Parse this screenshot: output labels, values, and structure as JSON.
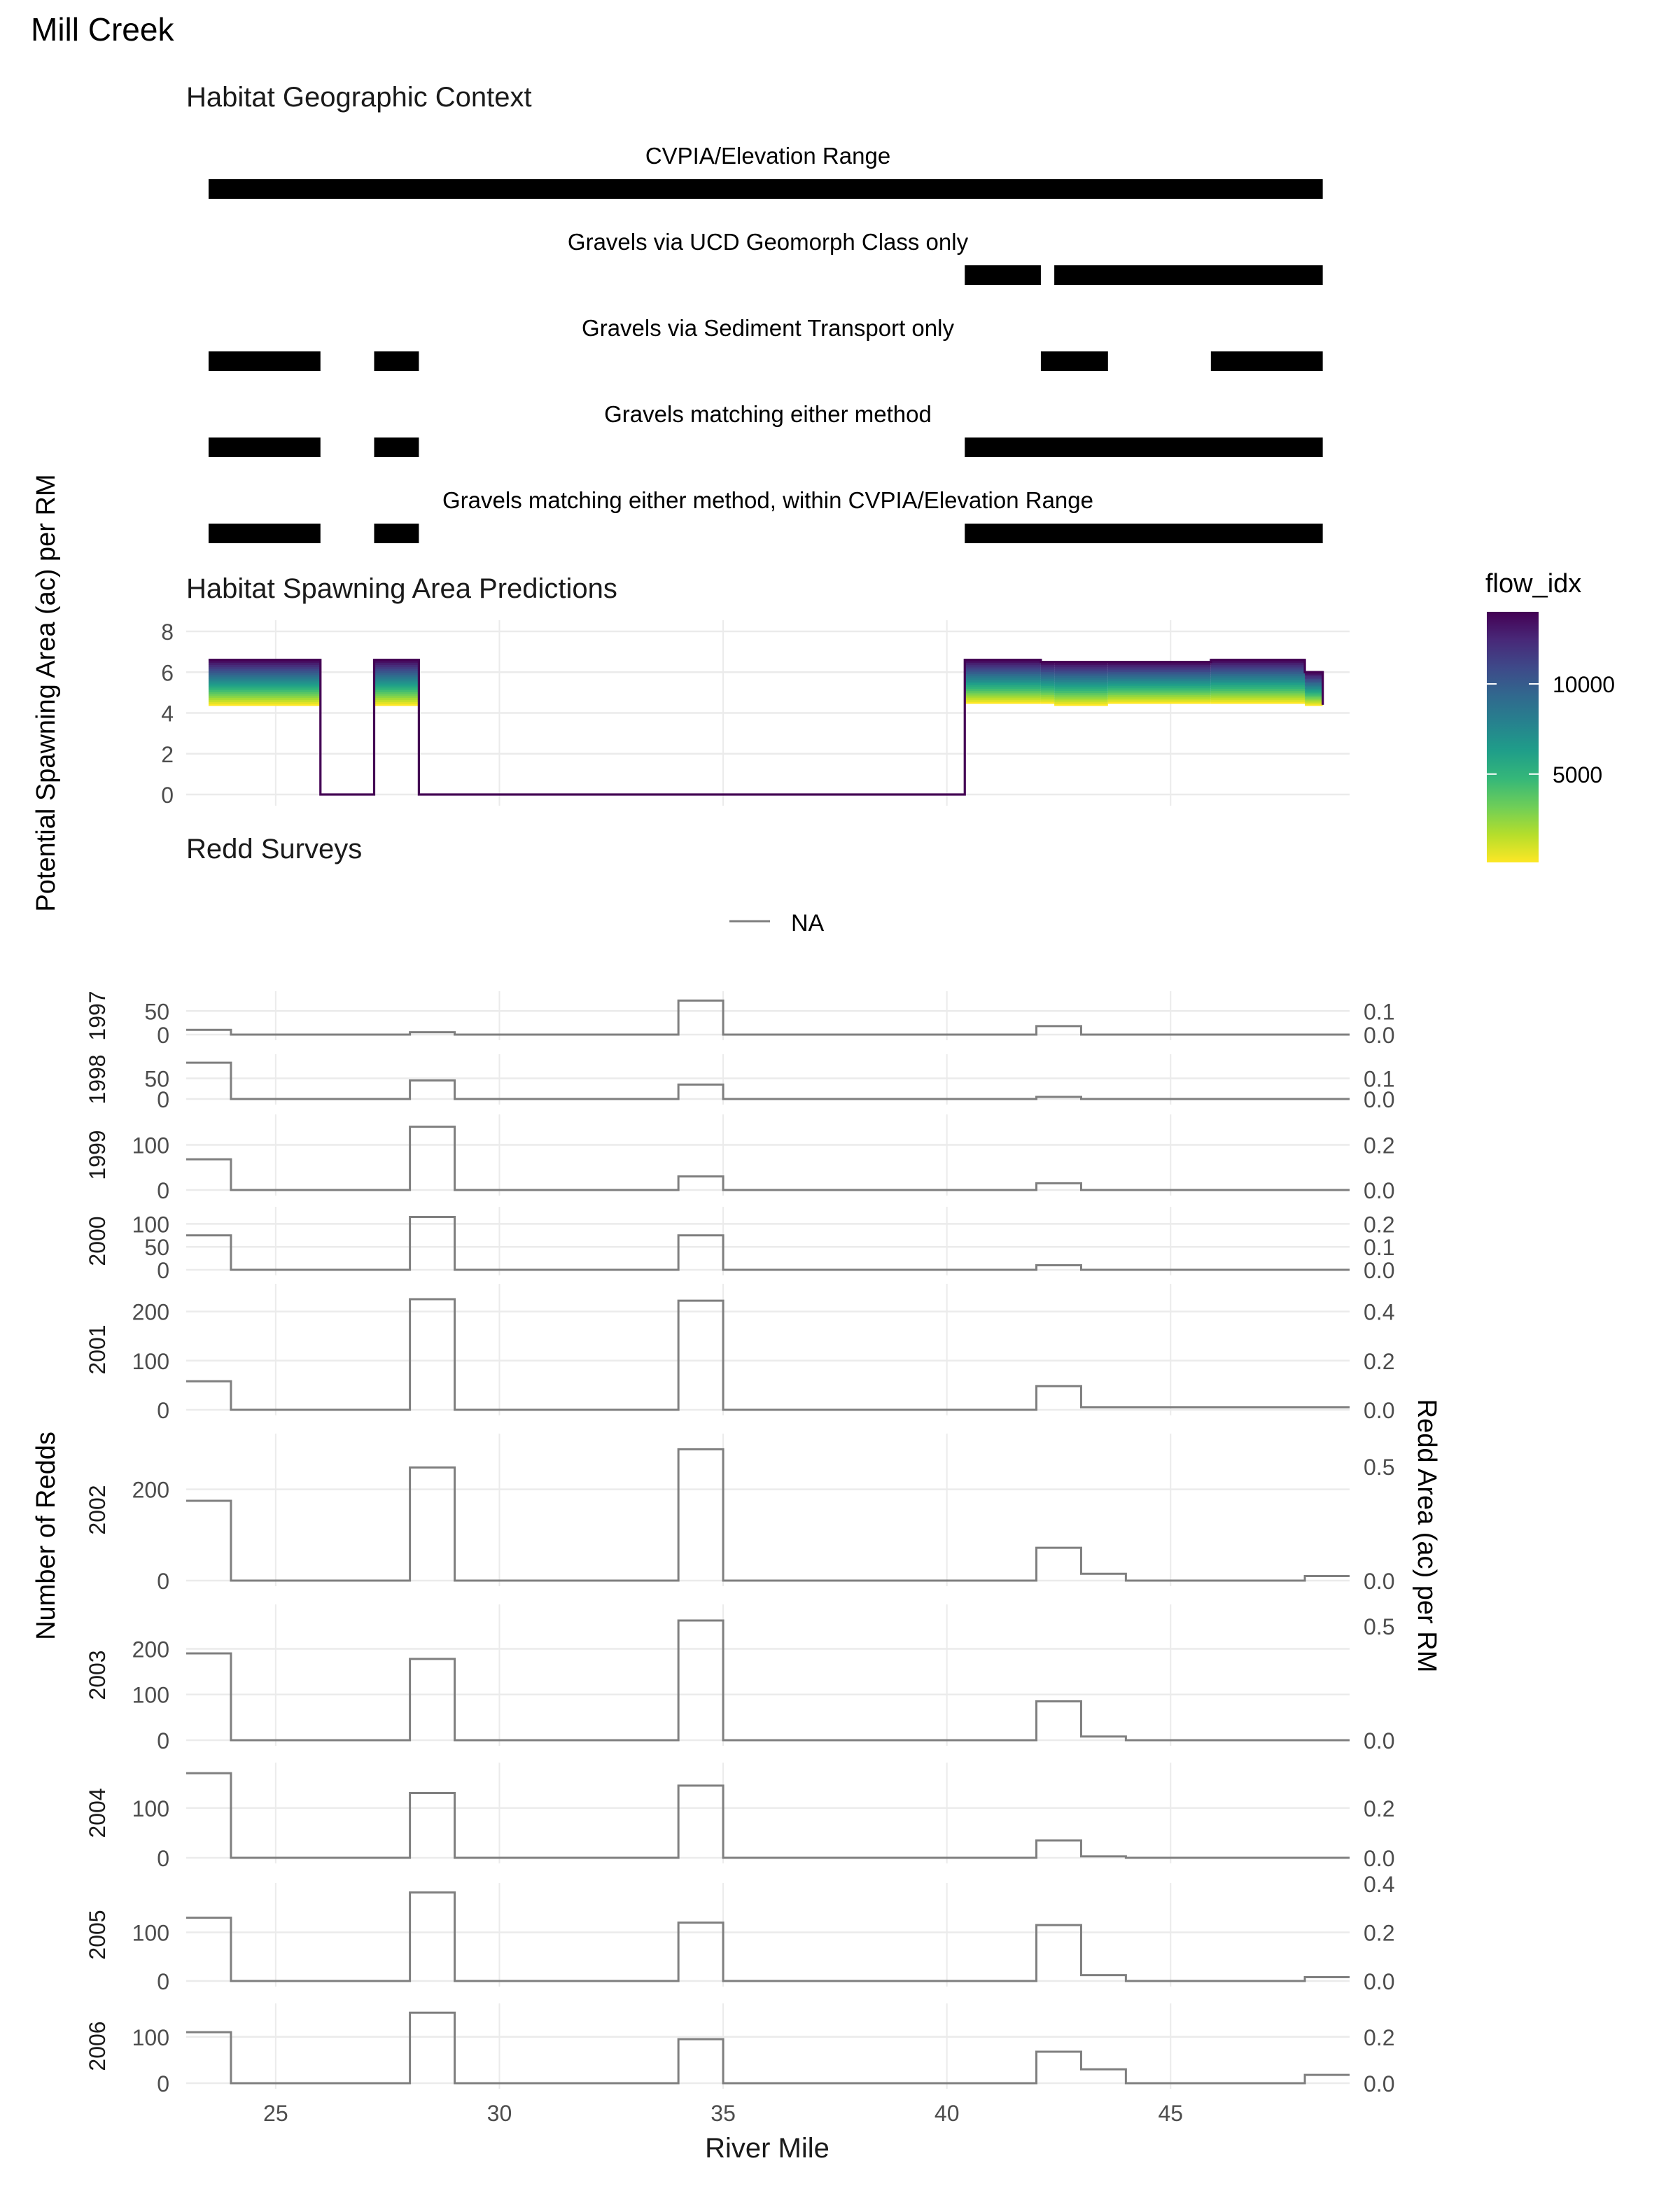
{
  "page_title": "Mill Creek",
  "chart_data": [
    {
      "type": "bar",
      "title": "Habitat Geographic Context",
      "x_range": [
        23,
        49
      ],
      "tracks": [
        {
          "label": "CVPIA/Elevation Range",
          "segments": [
            [
              23.5,
              48.4
            ]
          ]
        },
        {
          "label": "Gravels via UCD Geomorph Class only",
          "segments": [
            [
              40.4,
              42.1
            ],
            [
              42.4,
              48.4
            ]
          ]
        },
        {
          "label": "Gravels via Sediment Transport only",
          "segments": [
            [
              23.5,
              26.0
            ],
            [
              27.2,
              28.2
            ],
            [
              42.1,
              43.6
            ],
            [
              45.9,
              48.4
            ]
          ]
        },
        {
          "label": "Gravels matching either method",
          "segments": [
            [
              23.5,
              26.0
            ],
            [
              27.2,
              28.2
            ],
            [
              40.4,
              48.4
            ]
          ]
        },
        {
          "label": "Gravels matching either method, within CVPIA/Elevation Range",
          "segments": [
            [
              23.5,
              26.0
            ],
            [
              27.2,
              28.2
            ],
            [
              40.4,
              48.4
            ]
          ]
        }
      ]
    },
    {
      "type": "line",
      "title": "Habitat Spawning Area Predictions",
      "ylabel": "Potential Spawning Area (ac) per RM",
      "ylim": [
        0,
        8
      ],
      "y_ticks": [
        0,
        2,
        4,
        6,
        8
      ],
      "x_range": [
        23,
        49
      ],
      "legend": {
        "title": "flow_idx",
        "ticks": [
          5000,
          10000
        ],
        "range": [
          100,
          14000
        ],
        "colors": [
          "#fde725",
          "#b5de2b",
          "#6ece58",
          "#35b779",
          "#1f9e89",
          "#26828e",
          "#31688e",
          "#3e4989",
          "#482878",
          "#440154"
        ]
      },
      "segments": [
        {
          "x0": 23.5,
          "x1": 26.0,
          "top": 6.6,
          "bottom": 4.4
        },
        {
          "x0": 27.2,
          "x1": 28.2,
          "top": 6.6,
          "bottom": 4.4
        },
        {
          "x0": 40.4,
          "x1": 42.1,
          "top": 6.6,
          "bottom": 4.5
        },
        {
          "x0": 42.1,
          "x1": 42.4,
          "top": 6.5,
          "bottom": 4.5
        },
        {
          "x0": 42.4,
          "x1": 43.6,
          "top": 6.5,
          "bottom": 4.4
        },
        {
          "x0": 43.6,
          "x1": 45.9,
          "top": 6.5,
          "bottom": 4.5
        },
        {
          "x0": 45.9,
          "x1": 48.0,
          "top": 6.6,
          "bottom": 4.5
        },
        {
          "x0": 48.0,
          "x1": 48.4,
          "top": 6.0,
          "bottom": 4.4
        }
      ]
    },
    {
      "type": "line",
      "title": "Redd Surveys",
      "legend_label": "NA",
      "xlabel": "River Mile",
      "ylabel": "Number of Redds",
      "ylabel_right": "Redd Area (ac) per RM",
      "x_range": [
        23,
        49
      ],
      "x_ticks": [
        25,
        30,
        35,
        40,
        45
      ],
      "bins": [
        23,
        24,
        28,
        29,
        34,
        35,
        42,
        43,
        44,
        48,
        49
      ],
      "panels": [
        {
          "year": "1997",
          "counts": [
            10,
            0,
            5,
            0,
            72,
            0,
            18,
            0,
            0,
            0
          ],
          "ymax": 80,
          "y_ticks": [
            0,
            50
          ],
          "y2_ticks": [
            "0.0",
            "0.1"
          ],
          "y2_per": 500
        },
        {
          "year": "1998",
          "counts": [
            88,
            0,
            45,
            0,
            35,
            0,
            5,
            0,
            0,
            0
          ],
          "ymax": 95,
          "y_ticks": [
            0,
            50
          ],
          "y2_ticks": [
            "0.0",
            "0.1"
          ],
          "y2_per": 500
        },
        {
          "year": "1999",
          "counts": [
            68,
            0,
            140,
            0,
            30,
            0,
            15,
            0,
            0,
            0
          ],
          "ymax": 155,
          "y_ticks": [
            0,
            100
          ],
          "y2_ticks": [
            "0.0",
            "0.2"
          ],
          "y2_per": 500
        },
        {
          "year": "2000",
          "counts": [
            75,
            0,
            115,
            0,
            75,
            0,
            10,
            0,
            0,
            0
          ],
          "ymax": 125,
          "y_ticks": [
            0,
            50,
            100
          ],
          "y2_ticks": [
            "0.0",
            "0.1",
            "0.2"
          ],
          "y2_per": 500
        },
        {
          "year": "2001",
          "counts": [
            58,
            0,
            225,
            0,
            222,
            0,
            48,
            5,
            5,
            5
          ],
          "ymax": 245,
          "y_ticks": [
            0,
            100,
            200
          ],
          "y2_ticks": [
            "0.0",
            "0.2",
            "0.4"
          ],
          "y2_per": 500
        },
        {
          "year": "2002",
          "counts": [
            175,
            0,
            248,
            0,
            288,
            0,
            72,
            15,
            0,
            10
          ],
          "ymax": 310,
          "y_ticks": [
            0,
            200
          ],
          "y2_ticks": [
            "0.0",
            "0.5"
          ],
          "y2_per": 500
        },
        {
          "year": "2003",
          "counts": [
            190,
            0,
            178,
            0,
            262,
            0,
            85,
            8,
            0,
            0
          ],
          "ymax": 285,
          "y_ticks": [
            0,
            100,
            200
          ],
          "y2_ticks": [
            "0.0",
            "0.5"
          ],
          "y2_per": 500
        },
        {
          "year": "2004",
          "counts": [
            170,
            0,
            130,
            0,
            145,
            0,
            35,
            3,
            0,
            0
          ],
          "ymax": 180,
          "y_ticks": [
            0,
            100
          ],
          "y2_ticks": [
            "0.0",
            "0.2"
          ],
          "y2_per": 500
        },
        {
          "year": "2005",
          "counts": [
            130,
            0,
            182,
            0,
            120,
            0,
            115,
            12,
            0,
            8
          ],
          "ymax": 190,
          "y_ticks": [
            0,
            100
          ],
          "y2_ticks": [
            "0.0",
            "0.2",
            "0.4"
          ],
          "y2_per": 500
        },
        {
          "year": "2006",
          "counts": [
            110,
            0,
            152,
            0,
            95,
            0,
            68,
            30,
            0,
            18
          ],
          "ymax": 160,
          "y_ticks": [
            0,
            100
          ],
          "y2_ticks": [
            "0.0",
            "0.2"
          ],
          "y2_per": 500
        }
      ]
    }
  ]
}
